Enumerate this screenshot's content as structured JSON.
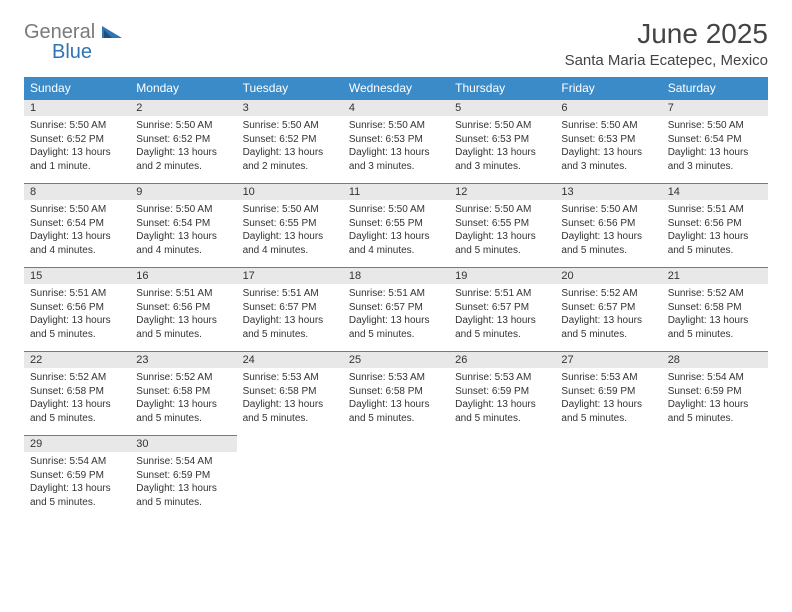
{
  "brand": {
    "text1": "General",
    "text2": "Blue"
  },
  "title": "June 2025",
  "location": "Santa Maria Ecatepec, Mexico",
  "colors": {
    "header_bg": "#3b8bc9",
    "header_fg": "#ffffff",
    "daynum_bg": "#e8e8e8",
    "daynum_border": "#3b8bc9",
    "text": "#333333",
    "background": "#ffffff",
    "brand_gray": "#7a7a7a",
    "brand_blue": "#2f74b5"
  },
  "day_headers": [
    "Sunday",
    "Monday",
    "Tuesday",
    "Wednesday",
    "Thursday",
    "Friday",
    "Saturday"
  ],
  "weeks": [
    [
      {
        "n": "1",
        "sr": "5:50 AM",
        "ss": "6:52 PM",
        "dl": "13 hours and 1 minute."
      },
      {
        "n": "2",
        "sr": "5:50 AM",
        "ss": "6:52 PM",
        "dl": "13 hours and 2 minutes."
      },
      {
        "n": "3",
        "sr": "5:50 AM",
        "ss": "6:52 PM",
        "dl": "13 hours and 2 minutes."
      },
      {
        "n": "4",
        "sr": "5:50 AM",
        "ss": "6:53 PM",
        "dl": "13 hours and 3 minutes."
      },
      {
        "n": "5",
        "sr": "5:50 AM",
        "ss": "6:53 PM",
        "dl": "13 hours and 3 minutes."
      },
      {
        "n": "6",
        "sr": "5:50 AM",
        "ss": "6:53 PM",
        "dl": "13 hours and 3 minutes."
      },
      {
        "n": "7",
        "sr": "5:50 AM",
        "ss": "6:54 PM",
        "dl": "13 hours and 3 minutes."
      }
    ],
    [
      {
        "n": "8",
        "sr": "5:50 AM",
        "ss": "6:54 PM",
        "dl": "13 hours and 4 minutes."
      },
      {
        "n": "9",
        "sr": "5:50 AM",
        "ss": "6:54 PM",
        "dl": "13 hours and 4 minutes."
      },
      {
        "n": "10",
        "sr": "5:50 AM",
        "ss": "6:55 PM",
        "dl": "13 hours and 4 minutes."
      },
      {
        "n": "11",
        "sr": "5:50 AM",
        "ss": "6:55 PM",
        "dl": "13 hours and 4 minutes."
      },
      {
        "n": "12",
        "sr": "5:50 AM",
        "ss": "6:55 PM",
        "dl": "13 hours and 5 minutes."
      },
      {
        "n": "13",
        "sr": "5:50 AM",
        "ss": "6:56 PM",
        "dl": "13 hours and 5 minutes."
      },
      {
        "n": "14",
        "sr": "5:51 AM",
        "ss": "6:56 PM",
        "dl": "13 hours and 5 minutes."
      }
    ],
    [
      {
        "n": "15",
        "sr": "5:51 AM",
        "ss": "6:56 PM",
        "dl": "13 hours and 5 minutes."
      },
      {
        "n": "16",
        "sr": "5:51 AM",
        "ss": "6:56 PM",
        "dl": "13 hours and 5 minutes."
      },
      {
        "n": "17",
        "sr": "5:51 AM",
        "ss": "6:57 PM",
        "dl": "13 hours and 5 minutes."
      },
      {
        "n": "18",
        "sr": "5:51 AM",
        "ss": "6:57 PM",
        "dl": "13 hours and 5 minutes."
      },
      {
        "n": "19",
        "sr": "5:51 AM",
        "ss": "6:57 PM",
        "dl": "13 hours and 5 minutes."
      },
      {
        "n": "20",
        "sr": "5:52 AM",
        "ss": "6:57 PM",
        "dl": "13 hours and 5 minutes."
      },
      {
        "n": "21",
        "sr": "5:52 AM",
        "ss": "6:58 PM",
        "dl": "13 hours and 5 minutes."
      }
    ],
    [
      {
        "n": "22",
        "sr": "5:52 AM",
        "ss": "6:58 PM",
        "dl": "13 hours and 5 minutes."
      },
      {
        "n": "23",
        "sr": "5:52 AM",
        "ss": "6:58 PM",
        "dl": "13 hours and 5 minutes."
      },
      {
        "n": "24",
        "sr": "5:53 AM",
        "ss": "6:58 PM",
        "dl": "13 hours and 5 minutes."
      },
      {
        "n": "25",
        "sr": "5:53 AM",
        "ss": "6:58 PM",
        "dl": "13 hours and 5 minutes."
      },
      {
        "n": "26",
        "sr": "5:53 AM",
        "ss": "6:59 PM",
        "dl": "13 hours and 5 minutes."
      },
      {
        "n": "27",
        "sr": "5:53 AM",
        "ss": "6:59 PM",
        "dl": "13 hours and 5 minutes."
      },
      {
        "n": "28",
        "sr": "5:54 AM",
        "ss": "6:59 PM",
        "dl": "13 hours and 5 minutes."
      }
    ],
    [
      {
        "n": "29",
        "sr": "5:54 AM",
        "ss": "6:59 PM",
        "dl": "13 hours and 5 minutes."
      },
      {
        "n": "30",
        "sr": "5:54 AM",
        "ss": "6:59 PM",
        "dl": "13 hours and 5 minutes."
      },
      null,
      null,
      null,
      null,
      null
    ]
  ],
  "labels": {
    "sunrise": "Sunrise: ",
    "sunset": "Sunset: ",
    "daylight": "Daylight: "
  }
}
